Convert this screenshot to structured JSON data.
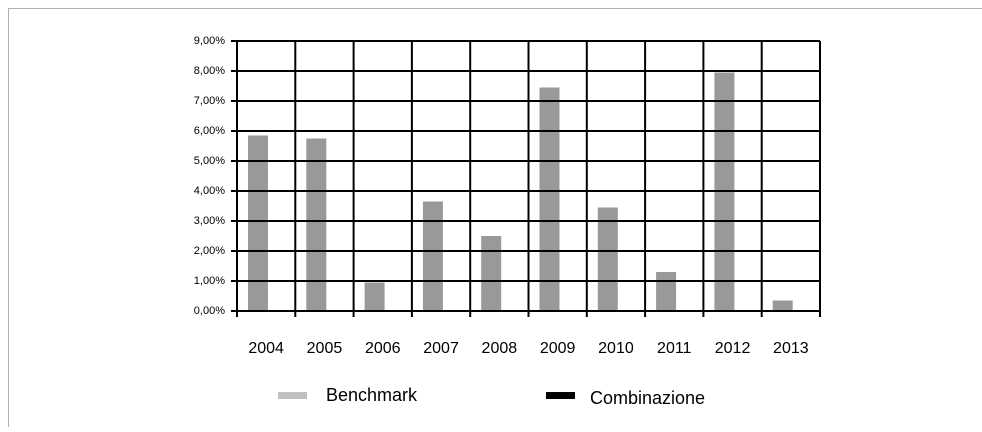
{
  "chart_data": {
    "type": "bar",
    "categories": [
      "2004",
      "2005",
      "2006",
      "2007",
      "2008",
      "2009",
      "2010",
      "2011",
      "2012",
      "2013"
    ],
    "series": [
      {
        "name": "Benchmark",
        "color": "#c0c0c0",
        "bar_color": "#999999",
        "values": [
          5.85,
          5.75,
          0.95,
          3.65,
          2.5,
          7.45,
          3.45,
          1.3,
          7.95,
          0.35
        ]
      },
      {
        "name": "Combinazione",
        "color": "#000000",
        "values": [
          null,
          null,
          null,
          null,
          null,
          null,
          null,
          null,
          null,
          null
        ]
      }
    ],
    "ylim": [
      0,
      9
    ],
    "yticks": [
      {
        "value": 0,
        "label": "0,00%"
      },
      {
        "value": 1,
        "label": "1,00%"
      },
      {
        "value": 2,
        "label": "2,00%"
      },
      {
        "value": 3,
        "label": "3,00%"
      },
      {
        "value": 4,
        "label": "4,00%"
      },
      {
        "value": 5,
        "label": "5,00%"
      },
      {
        "value": 6,
        "label": "6,00%"
      },
      {
        "value": 7,
        "label": "7,00%"
      },
      {
        "value": 8,
        "label": "8,00%"
      },
      {
        "value": 9,
        "label": "9,00%"
      }
    ],
    "grid": true
  }
}
